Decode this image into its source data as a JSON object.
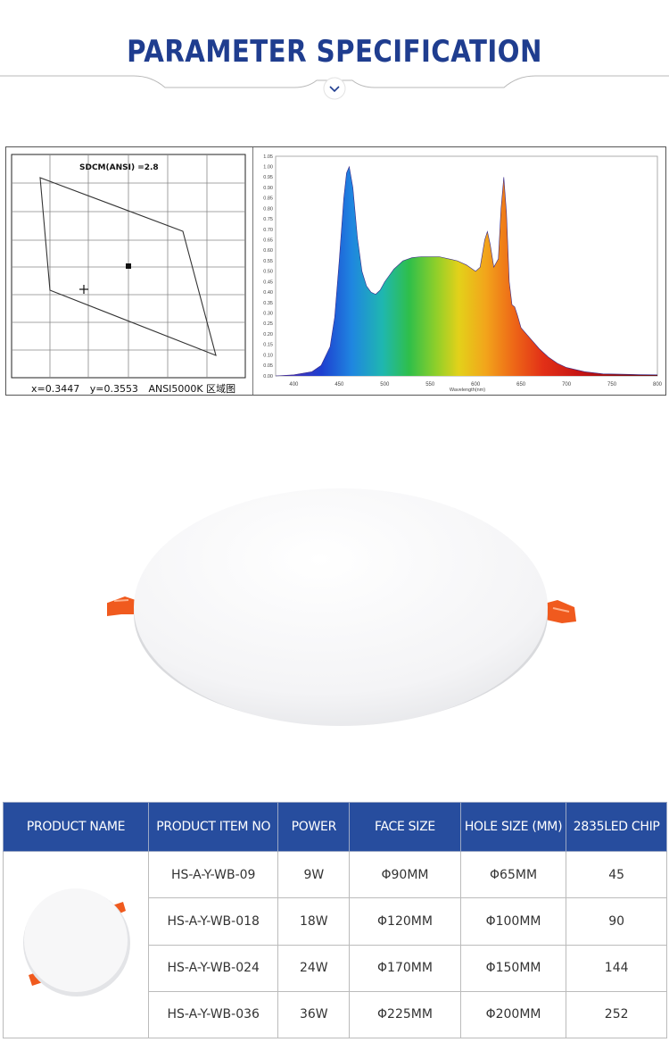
{
  "header": {
    "title": "PARAMETER SPECIFICATION",
    "chevron_icon": "chevron-down-icon"
  },
  "cie_chart": {
    "title": "SDCM(ANSI) =2.8",
    "x_value": "x=0.3447",
    "y_value": "y=0.3553",
    "region_label": "ANSI5000K 区域图"
  },
  "spd_chart_data": {
    "type": "area",
    "xlabel": "Wavelength(nm)",
    "x_ticks": [
      "400",
      "450",
      "500",
      "550",
      "600",
      "650",
      "700",
      "750",
      "800"
    ],
    "y_ticks": [
      "0.00",
      "0.05",
      "0.10",
      "0.15",
      "0.20",
      "0.25",
      "0.30",
      "0.35",
      "0.40",
      "0.45",
      "0.50",
      "0.55",
      "0.60",
      "0.65",
      "0.70",
      "0.75",
      "0.80",
      "0.85",
      "0.90",
      "0.95",
      "1.00",
      "1.05"
    ],
    "xlim": [
      380,
      800
    ],
    "ylim": [
      0,
      1.05
    ],
    "x": [
      380,
      400,
      420,
      430,
      440,
      445,
      450,
      455,
      458,
      461,
      465,
      470,
      475,
      480,
      485,
      490,
      495,
      500,
      510,
      520,
      530,
      540,
      550,
      560,
      570,
      580,
      590,
      600,
      605,
      610,
      613,
      616,
      620,
      625,
      628,
      631,
      634,
      637,
      640,
      643,
      646,
      650,
      660,
      670,
      680,
      690,
      700,
      720,
      740,
      760,
      780,
      800
    ],
    "y": [
      0.0,
      0.005,
      0.02,
      0.05,
      0.14,
      0.28,
      0.55,
      0.85,
      0.97,
      1.0,
      0.9,
      0.66,
      0.5,
      0.43,
      0.4,
      0.39,
      0.41,
      0.45,
      0.51,
      0.55,
      0.565,
      0.57,
      0.57,
      0.57,
      0.56,
      0.55,
      0.53,
      0.5,
      0.52,
      0.65,
      0.69,
      0.63,
      0.52,
      0.56,
      0.8,
      0.95,
      0.78,
      0.45,
      0.34,
      0.33,
      0.29,
      0.23,
      0.18,
      0.13,
      0.09,
      0.06,
      0.04,
      0.02,
      0.01,
      0.008,
      0.006,
      0.005
    ]
  },
  "table": {
    "headers": [
      "PRODUCT NAME",
      "PRODUCT ITEM NO",
      "POWER",
      "FACE SIZE",
      "HOLE SIZE (MM)",
      "2835LED CHIP"
    ],
    "rows": [
      [
        "HS-A-Y-WB-09",
        "9W",
        "Φ90MM",
        "Φ65MM",
        "45"
      ],
      [
        "HS-A-Y-WB-018",
        "18W",
        "Φ120MM",
        "Φ100MM",
        "90"
      ],
      [
        "HS-A-Y-WB-024",
        "24W",
        "Φ170MM",
        "Φ150MM",
        "144"
      ],
      [
        "HS-A-Y-WB-036",
        "36W",
        "Φ225MM",
        "Φ200MM",
        "252"
      ]
    ]
  },
  "colors": {
    "title": "#1f3d8f",
    "table_header": "#274d9e",
    "clip_orange": "#f05a1e"
  }
}
